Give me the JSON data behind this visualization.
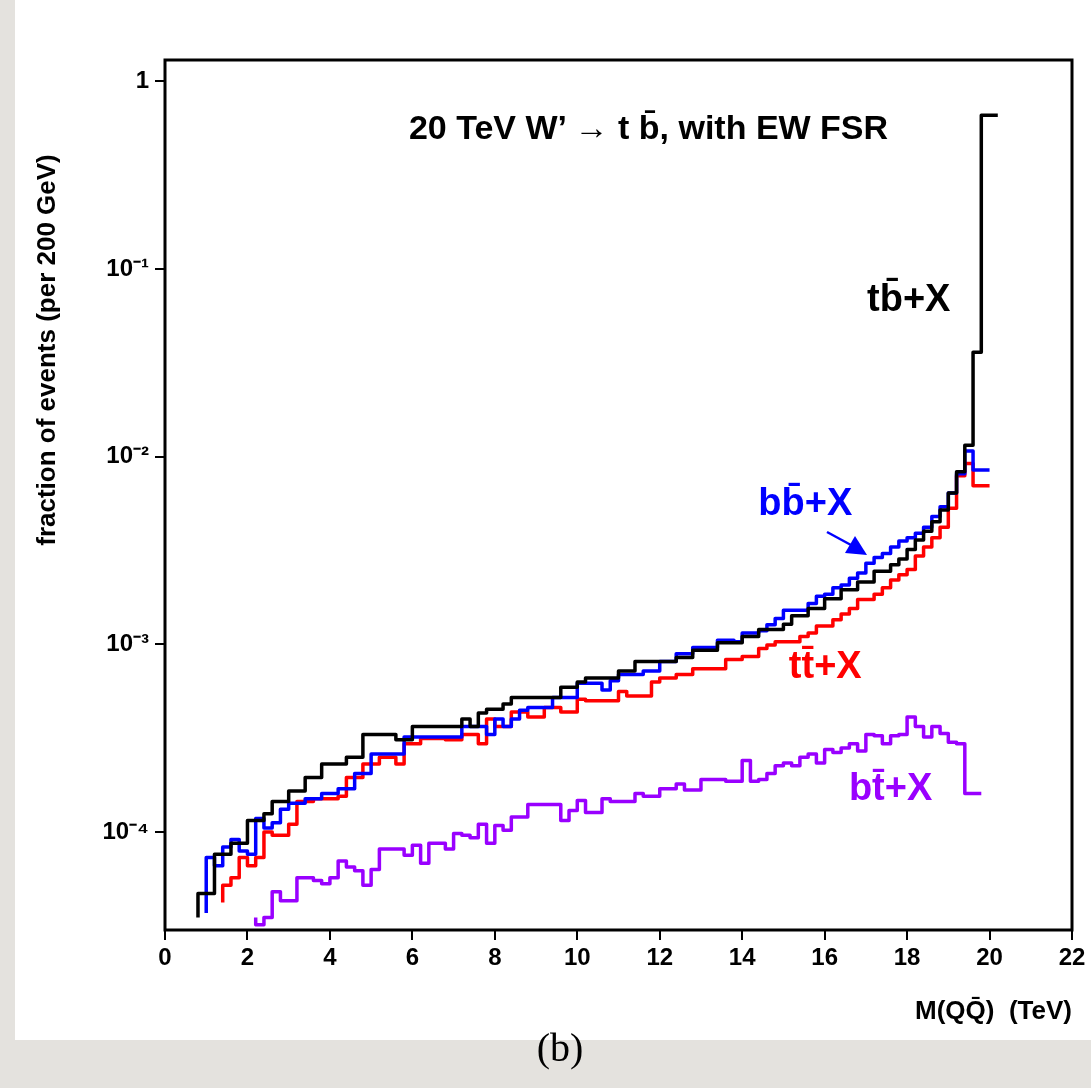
{
  "chart_data": {
    "type": "step",
    "title": "20 TeV W’ → t b̄, with EW FSR",
    "xlabel": "M(QQ̄)  (TeV)",
    "ylabel": "fraction of events (per 200 GeV)",
    "annotations": [
      "(b)"
    ],
    "xlim": [
      0,
      22
    ],
    "xticks": [
      0,
      2,
      4,
      6,
      8,
      10,
      12,
      14,
      16,
      18,
      20,
      22
    ],
    "ylim": [
      3e-05,
      1.3
    ],
    "yticks": [
      {
        "value": 0.0001,
        "label": "10⁻⁴"
      },
      {
        "value": 0.001,
        "label": "10⁻³"
      },
      {
        "value": 0.01,
        "label": "10⁻²"
      },
      {
        "value": 0.1,
        "label": "10⁻¹"
      },
      1
    ],
    "log": true,
    "legend": false,
    "series": [
      {
        "name": "tb̄+X",
        "color": "#000000",
        "x": [
          0.8,
          1.2,
          1.6,
          2.0,
          2.4,
          2.6,
          3.0,
          3.4,
          3.8,
          4.4,
          4.8,
          5.6,
          6.0,
          6.8,
          7.2,
          7.4,
          7.6,
          7.8,
          8.2,
          8.4,
          9.6,
          10.0,
          10.2,
          11.0,
          11.4,
          12.4,
          12.8,
          13.4,
          14.0,
          14.4,
          15.0,
          15.2,
          15.6,
          16.0,
          16.4,
          16.8,
          17.2,
          17.6,
          17.8,
          18.0,
          18.2,
          18.4,
          18.6,
          18.8,
          19.0,
          19.2,
          19.4,
          19.6,
          19.8,
          20.0,
          20.2
        ],
        "values": [
          3.5e-05,
          4.7e-05,
          7.6e-05,
          8.7e-05,
          0.000115,
          0.000125,
          0.000145,
          0.000165,
          0.000195,
          0.00023,
          0.00025,
          0.00033,
          0.00031,
          0.000365,
          0.000365,
          0.0004,
          0.000365,
          0.00043,
          0.00045,
          0.00048,
          0.00052,
          0.00059,
          0.00063,
          0.00066,
          0.00072,
          0.00081,
          0.00085,
          0.00093,
          0.00102,
          0.0011,
          0.0012,
          0.00128,
          0.00142,
          0.00155,
          0.00175,
          0.00195,
          0.00215,
          0.00245,
          0.00265,
          0.00285,
          0.0032,
          0.0036,
          0.004,
          0.0045,
          0.0052,
          0.0064,
          0.0083,
          0.0115,
          0.036,
          0.66,
          0.66
        ]
      },
      {
        "name": "bb̄+X",
        "color": "#0000ff",
        "x": [
          1.0,
          1.2,
          1.4,
          1.6,
          1.8,
          2.0,
          2.2,
          2.4,
          2.6,
          2.8,
          3.0,
          3.4,
          3.8,
          4.2,
          4.6,
          5.0,
          5.8,
          6.8,
          7.2,
          7.8,
          8.0,
          8.2,
          8.4,
          8.6,
          8.8,
          9.4,
          10.0,
          10.6,
          10.8,
          11.0,
          11.6,
          12.0,
          12.4,
          12.8,
          13.4,
          13.8,
          14.0,
          14.4,
          14.6,
          14.8,
          15.0,
          15.6,
          15.8,
          16.0,
          16.2,
          16.4,
          16.6,
          16.8,
          17.0,
          17.2,
          17.4,
          17.6,
          17.8,
          18.0,
          18.2,
          18.4,
          18.6,
          18.8,
          19.0,
          19.2,
          19.4,
          19.6,
          19.8,
          20.0
        ],
        "values": [
          3.7e-05,
          7.3e-05,
          6.6e-05,
          8.3e-05,
          9.1e-05,
          7.9e-05,
          7.6e-05,
          0.000118,
          0.000105,
          0.000112,
          0.000132,
          0.000142,
          0.00015,
          0.00016,
          0.00017,
          0.000205,
          0.00026,
          0.00032,
          0.00032,
          0.000365,
          0.00033,
          0.0004,
          0.000365,
          0.0004,
          0.000445,
          0.00046,
          0.00052,
          0.00062,
          0.00057,
          0.00064,
          0.00069,
          0.00072,
          0.00081,
          0.00089,
          0.00096,
          0.00105,
          0.00103,
          0.00115,
          0.00118,
          0.00127,
          0.00137,
          0.00152,
          0.00165,
          0.0018,
          0.00185,
          0.002,
          0.00207,
          0.00225,
          0.0024,
          0.0027,
          0.0029,
          0.00305,
          0.0033,
          0.00355,
          0.0037,
          0.0039,
          0.0042,
          0.0048,
          0.0054,
          0.0064,
          0.0081,
          0.0107,
          0.0085,
          0.0085
        ]
      },
      {
        "name": "tt̄+X",
        "color": "#ff0000",
        "x": [
          1.4,
          1.6,
          1.8,
          2.0,
          2.2,
          2.4,
          2.6,
          3.0,
          3.2,
          3.6,
          4.2,
          4.4,
          4.8,
          5.2,
          5.6,
          5.8,
          6.2,
          6.8,
          7.2,
          7.6,
          7.8,
          8.0,
          8.4,
          8.8,
          9.2,
          9.6,
          10.0,
          10.2,
          11.0,
          11.2,
          11.8,
          12.0,
          12.4,
          12.8,
          13.6,
          14.0,
          14.4,
          14.6,
          14.8,
          15.4,
          15.6,
          15.8,
          16.2,
          16.4,
          16.6,
          16.8,
          17.2,
          17.4,
          17.6,
          17.8,
          18.0,
          18.2,
          18.4,
          18.6,
          18.8,
          19.0,
          19.2,
          19.4,
          19.6,
          19.8,
          20.0
        ],
        "values": [
          4.2e-05,
          5.2e-05,
          5.7e-05,
          7.3e-05,
          6.6e-05,
          7.3e-05,
          0.0001,
          9.6e-05,
          0.00011,
          0.000145,
          0.00015,
          0.000155,
          0.000195,
          0.00023,
          0.00025,
          0.00023,
          0.000295,
          0.000315,
          0.00031,
          0.00033,
          0.000295,
          0.0004,
          0.000365,
          0.000435,
          0.00041,
          0.00046,
          0.000435,
          0.00051,
          0.0005,
          0.00056,
          0.00053,
          0.00063,
          0.00066,
          0.00069,
          0.00074,
          0.00083,
          0.00086,
          0.00095,
          0.00099,
          0.00103,
          0.0011,
          0.00115,
          0.00125,
          0.00135,
          0.00145,
          0.00155,
          0.00173,
          0.00185,
          0.002,
          0.0022,
          0.00235,
          0.0025,
          0.00295,
          0.0033,
          0.0037,
          0.0042,
          0.0053,
          0.0079,
          0.0092,
          0.007,
          0.007
        ]
      },
      {
        "name": "bt̄+X",
        "color": "#9900ff",
        "x": [
          2.2,
          2.4,
          2.6,
          2.8,
          3.2,
          3.6,
          3.8,
          4.0,
          4.2,
          4.4,
          4.6,
          4.8,
          5.0,
          5.2,
          5.8,
          6.0,
          6.2,
          6.4,
          6.8,
          7.0,
          7.2,
          7.4,
          7.6,
          7.8,
          8.0,
          8.2,
          8.4,
          8.8,
          9.6,
          9.8,
          10.0,
          10.2,
          10.6,
          10.8,
          11.4,
          11.6,
          12.0,
          12.4,
          12.6,
          13.0,
          13.6,
          14.0,
          14.2,
          14.4,
          14.6,
          14.8,
          15.0,
          15.2,
          15.4,
          15.6,
          15.8,
          16.0,
          16.2,
          16.4,
          16.6,
          16.8,
          17.0,
          17.2,
          17.4,
          17.6,
          17.8,
          18.0,
          18.2,
          18.4,
          18.6,
          18.8,
          19.0,
          19.2,
          19.4,
          19.6,
          19.8
        ],
        "values": [
          3.5e-05,
          3.2e-05,
          3.5e-05,
          4.8e-05,
          4.3e-05,
          5.7e-05,
          5.5e-05,
          5.3e-05,
          5.7e-05,
          7e-05,
          6.5e-05,
          6.2e-05,
          5.2e-05,
          6.3e-05,
          8.1e-05,
          7.5e-05,
          8.5e-05,
          6.8e-05,
          8.7e-05,
          8.1e-05,
          9.8e-05,
          9.6e-05,
          9.3e-05,
          0.00011,
          8.7e-05,
          0.000108,
          0.000102,
          0.00012,
          0.00014,
          0.000115,
          0.00013,
          0.000147,
          0.000127,
          0.00015,
          0.000145,
          0.00016,
          0.000155,
          0.00017,
          0.00018,
          0.000167,
          0.00019,
          0.000186,
          0.00024,
          0.000186,
          0.00019,
          0.000205,
          0.000225,
          0.000233,
          0.000225,
          0.00025,
          0.00026,
          0.000233,
          0.000275,
          0.000265,
          0.00028,
          0.000295,
          0.00027,
          0.00033,
          0.000325,
          0.000295,
          0.000325,
          0.00033,
          0.00041,
          0.000365,
          0.00032,
          0.000365,
          0.000335,
          0.0003,
          0.000295,
          0.00016,
          0.00016
        ]
      }
    ]
  }
}
